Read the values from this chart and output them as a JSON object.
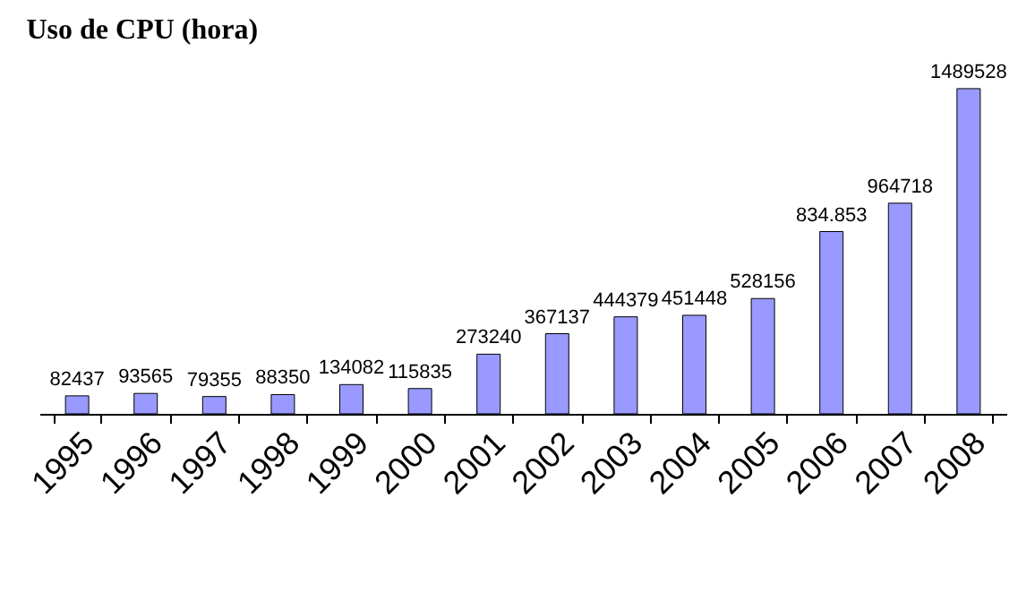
{
  "chart_data": {
    "type": "bar",
    "title": "Uso de CPU (hora)",
    "categories": [
      "1995",
      "1996",
      "1997",
      "1998",
      "1999",
      "2000",
      "2001",
      "2002",
      "2003",
      "2004",
      "2005",
      "2006",
      "2007",
      "2008"
    ],
    "values": [
      82437,
      93565,
      79355,
      88350,
      134082,
      115835,
      273240,
      367137,
      444379,
      451448,
      528156,
      834853,
      964718,
      1489528
    ],
    "value_labels": [
      "82437",
      "93565",
      "79355",
      "88350",
      "134082",
      "115835",
      "273240",
      "367137",
      "444379",
      "451448",
      "528156",
      "834.853",
      "964718",
      "1489528"
    ],
    "color": "#9999ff",
    "tick_labels": "x"
  }
}
